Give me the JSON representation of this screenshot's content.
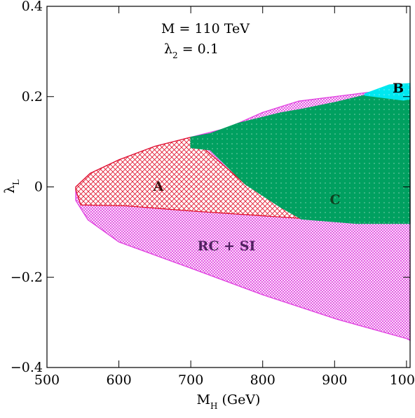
{
  "chart_data": {
    "type": "region",
    "annotation": [
      [
        "M = 110 TeV"
      ],
      [
        "λ",
        "2",
        " = 0.1"
      ]
    ],
    "x_label": [
      "M",
      "H",
      " (GeV)"
    ],
    "y_label": [
      "λ",
      "L"
    ],
    "xlim": [
      500,
      1005
    ],
    "ylim": [
      -0.4,
      0.4
    ],
    "xticks": [
      500,
      600,
      700,
      800,
      900,
      1000
    ],
    "yticks": [
      {
        "value": -0.4,
        "label": "−0.4"
      },
      {
        "value": -0.2,
        "label": "−0.2"
      },
      0,
      0.2,
      0.4
    ],
    "series": [
      {
        "name": "RC + SI",
        "color": "#e040e0",
        "label_color": "#502060",
        "pattern": "crosshatch-fine",
        "x": [
          540,
          560,
          600,
          650,
          700,
          750,
          800,
          850,
          900,
          950,
          1005,
          1005,
          1000,
          903,
          800,
          700,
          600,
          557,
          540
        ],
        "y": [
          0.0,
          0.03,
          0.06,
          0.09,
          0.11,
          0.13,
          0.165,
          0.19,
          0.2,
          0.21,
          0.22,
          -0.34,
          -0.336,
          -0.293,
          -0.239,
          -0.18,
          -0.122,
          -0.073,
          -0.03
        ]
      },
      {
        "name": "A",
        "color": "#e0102a",
        "label_color": "#401010",
        "pattern": "crosshatch",
        "x": [
          540,
          560,
          600,
          650,
          700,
          776,
          844,
          893,
          698,
          610,
          547,
          540
        ],
        "y": [
          0.0,
          0.03,
          0.06,
          0.09,
          0.11,
          0.006,
          -0.06,
          -0.074,
          -0.053,
          -0.042,
          -0.04,
          -0.006
        ]
      },
      {
        "name": "C",
        "color": "#00a060",
        "label_color": "#104020",
        "pattern": "dots",
        "x": [
          700,
          727,
          766,
          825,
          854,
          903,
          942,
          1000,
          1005,
          1005,
          932,
          854,
          825,
          776,
          727,
          700
        ],
        "y": [
          0.11,
          0.118,
          0.141,
          0.164,
          0.172,
          0.188,
          0.203,
          0.203,
          0.195,
          -0.081,
          -0.081,
          -0.071,
          -0.045,
          0.006,
          0.082,
          0.087
        ]
      },
      {
        "name": "B",
        "color": "#00e8f0",
        "label_color": "#000000",
        "pattern": "dots",
        "x": [
          942,
          976,
          1005,
          1005,
          996,
          942
        ],
        "y": [
          0.206,
          0.226,
          0.229,
          0.195,
          0.192,
          0.203
        ]
      }
    ]
  }
}
